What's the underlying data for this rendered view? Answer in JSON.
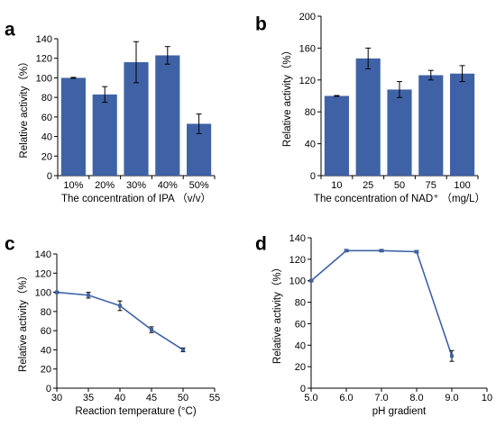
{
  "chart_data": [
    {
      "panel": "a",
      "type": "bar",
      "categories": [
        "10%",
        "20%",
        "30%",
        "40%",
        "50%"
      ],
      "values": [
        100,
        83,
        116,
        123,
        53
      ],
      "errors": [
        0.5,
        8,
        21,
        9,
        10
      ],
      "xlabel": "The concentration of IPA （v/v）",
      "ylabel": "Relative activity（%）",
      "ylim": [
        0,
        140
      ],
      "yticks": [
        0,
        20,
        40,
        60,
        80,
        100,
        120,
        140
      ],
      "color": "#3f62a6",
      "grid": false
    },
    {
      "panel": "b",
      "type": "bar",
      "categories": [
        "10",
        "25",
        "50",
        "75",
        "100"
      ],
      "values": [
        100,
        147,
        108,
        126,
        128
      ],
      "errors": [
        0.5,
        13,
        10,
        6,
        10
      ],
      "xlabel": "The concentration of NAD⁺ （mg/L）",
      "ylabel": "Relative activity（%）",
      "ylim": [
        0,
        200
      ],
      "yticks": [
        0,
        40,
        80,
        120,
        160,
        200
      ],
      "color": "#3f62a6",
      "grid": false
    },
    {
      "panel": "c",
      "type": "line",
      "x": [
        30,
        35,
        40,
        45,
        50
      ],
      "y": [
        100,
        97,
        86,
        61,
        40
      ],
      "errors": [
        0.5,
        3,
        5,
        3,
        2
      ],
      "xlabel": "Reaction  temperature (°C)",
      "ylabel": "Relative activity（%）",
      "xlim": [
        30,
        55
      ],
      "xticks": [
        30,
        35,
        40,
        45,
        50,
        55
      ],
      "ylim": [
        0,
        140
      ],
      "yticks": [
        0,
        20,
        40,
        60,
        80,
        100,
        120,
        140
      ],
      "color": "#3f62a6",
      "grid": false
    },
    {
      "panel": "d",
      "type": "line",
      "x": [
        5.0,
        6.0,
        7.0,
        8.0,
        9.0
      ],
      "y": [
        100,
        128,
        128,
        127,
        30
      ],
      "errors": [
        0.5,
        1,
        1,
        1,
        5
      ],
      "xlabel": "pH gradient",
      "ylabel": "Relative activity（%）",
      "xlim": [
        5.0,
        10
      ],
      "xticks": [
        "5.0",
        "6.0",
        "7.0",
        "8.0",
        "9.0",
        "10"
      ],
      "ylim": [
        0,
        140
      ],
      "yticks": [
        0,
        20,
        40,
        60,
        80,
        100,
        120,
        140
      ],
      "color": "#3f62a6",
      "grid": false
    }
  ]
}
